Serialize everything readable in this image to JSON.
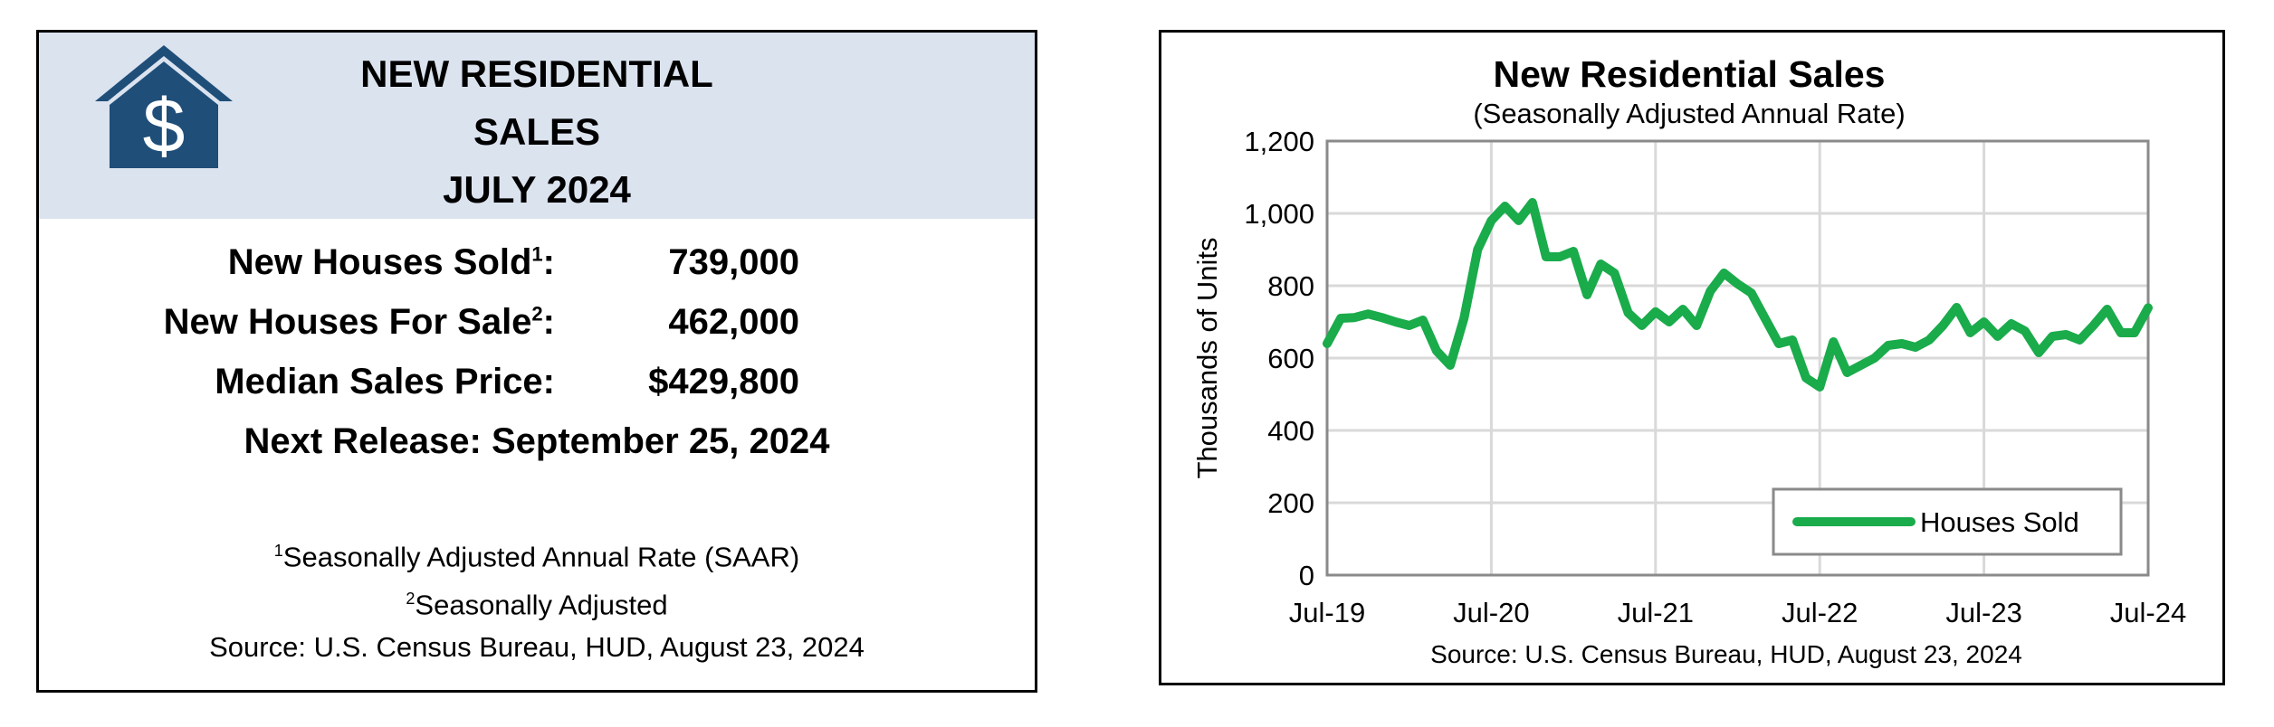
{
  "summary": {
    "header_lines": [
      "NEW RESIDENTIAL",
      "SALES",
      "JULY 2024"
    ],
    "stats": [
      {
        "label": "New Houses Sold",
        "sup": "1",
        "suffix": ":",
        "value": "739,000"
      },
      {
        "label": "New Houses For Sale",
        "sup": "2",
        "suffix": ":",
        "value": "462,000"
      },
      {
        "label": "Median Sales Price",
        "sup": "",
        "suffix": ":",
        "value": "$429,800"
      }
    ],
    "next_release": "Next Release:  September 25, 2024",
    "footnotes": [
      {
        "sup": "1",
        "text": "Seasonally Adjusted Annual Rate (SAAR)"
      },
      {
        "sup": "2",
        "text": "Seasonally Adjusted"
      },
      {
        "sup": "",
        "text": "Source:  U.S. Census Bureau, HUD, August 23, 2024"
      }
    ],
    "colors": {
      "header_bg": "#dbe3ef",
      "logo": "#1f4e79"
    },
    "logo_icon": "house-dollar-icon",
    "logo_symbol": "$"
  },
  "chart_data": {
    "type": "line",
    "title": "New Residential Sales",
    "subtitle": "(Seasonally Adjusted Annual Rate)",
    "ylabel": "Thousands of Units",
    "xlabel": "",
    "source": "Source:  U.S. Census Bureau, HUD, August 23, 2024",
    "x_ticks": [
      "Jul-19",
      "Jul-20",
      "Jul-21",
      "Jul-22",
      "Jul-23",
      "Jul-24"
    ],
    "y_ticks": [
      "0",
      "200",
      "400",
      "600",
      "800",
      "1,000",
      "1,200"
    ],
    "ylim": [
      0,
      1200
    ],
    "x_range": [
      "Jul-19",
      "Jul-24"
    ],
    "grid": true,
    "legend_position": "bottom-right",
    "series": [
      {
        "name": "Houses Sold",
        "color": "#1aab4b",
        "x": [
          "Jul-19",
          "Aug-19",
          "Sep-19",
          "Oct-19",
          "Nov-19",
          "Dec-19",
          "Jan-20",
          "Feb-20",
          "Mar-20",
          "Apr-20",
          "May-20",
          "Jun-20",
          "Jul-20",
          "Aug-20",
          "Sep-20",
          "Oct-20",
          "Nov-20",
          "Dec-20",
          "Jan-21",
          "Feb-21",
          "Mar-21",
          "Apr-21",
          "May-21",
          "Jun-21",
          "Jul-21",
          "Aug-21",
          "Sep-21",
          "Oct-21",
          "Nov-21",
          "Dec-21",
          "Jan-22",
          "Feb-22",
          "Mar-22",
          "Apr-22",
          "May-22",
          "Jun-22",
          "Jul-22",
          "Aug-22",
          "Sep-22",
          "Oct-22",
          "Nov-22",
          "Dec-22",
          "Jan-23",
          "Feb-23",
          "Mar-23",
          "Apr-23",
          "May-23",
          "Jun-23",
          "Jul-23",
          "Aug-23",
          "Sep-23",
          "Oct-23",
          "Nov-23",
          "Dec-23",
          "Jan-24",
          "Feb-24",
          "Mar-24",
          "Apr-24",
          "May-24",
          "Jun-24",
          "Jul-24"
        ],
        "values": [
          640,
          710,
          712,
          722,
          712,
          700,
          690,
          705,
          620,
          580,
          710,
          900,
          980,
          1020,
          980,
          1030,
          880,
          880,
          895,
          775,
          860,
          835,
          725,
          690,
          728,
          700,
          735,
          690,
          785,
          835,
          805,
          780,
          710,
          640,
          650,
          545,
          520,
          645,
          560,
          580,
          600,
          635,
          640,
          630,
          650,
          690,
          740,
          670,
          700,
          660,
          695,
          675,
          615,
          660,
          665,
          650,
          690,
          735,
          670,
          670,
          739
        ]
      }
    ]
  }
}
